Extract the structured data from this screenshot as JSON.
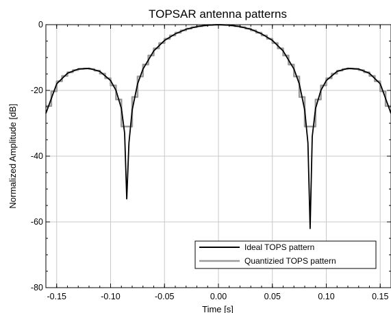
{
  "chart_data": {
    "type": "line",
    "title": "TOPSAR antenna patterns",
    "xlabel": "Time [s]",
    "ylabel": "Normalized Amplitude [dB]",
    "xlim": [
      -0.16,
      0.16
    ],
    "ylim": [
      -80,
      0
    ],
    "xticks": [
      -0.15,
      -0.1,
      -0.05,
      0.0,
      0.05,
      0.1,
      0.15
    ],
    "xtick_labels": [
      "-0.15",
      "-0.10",
      "-0.05",
      "0.00",
      "0.05",
      "0.10",
      "0.15"
    ],
    "yticks": [
      -80,
      -60,
      -40,
      -20,
      0
    ],
    "ytick_labels": [
      "-80",
      "-60",
      "-40",
      "-20",
      "0"
    ],
    "grid": true,
    "legend_position": "bottom-right",
    "series": [
      {
        "name": "Ideal TOPS pattern",
        "color": "#000000",
        "x": [
          -0.16,
          -0.15,
          -0.14,
          -0.13,
          -0.12,
          -0.11,
          -0.1,
          -0.095,
          -0.09,
          -0.087,
          -0.085,
          -0.083,
          -0.08,
          -0.075,
          -0.07,
          -0.06,
          -0.05,
          -0.04,
          -0.03,
          -0.02,
          -0.01,
          0.0,
          0.01,
          0.02,
          0.03,
          0.04,
          0.05,
          0.06,
          0.07,
          0.075,
          0.08,
          0.083,
          0.085,
          0.087,
          0.09,
          0.095,
          0.1,
          0.11,
          0.12,
          0.13,
          0.14,
          0.15,
          0.16
        ],
        "y": [
          -27,
          -18,
          -14.8,
          -13.5,
          -13.3,
          -14.2,
          -17,
          -20,
          -25.5,
          -33,
          -53,
          -36,
          -26,
          -18,
          -13.5,
          -8,
          -4.8,
          -2.8,
          -1.4,
          -0.6,
          -0.15,
          0,
          -0.15,
          -0.6,
          -1.4,
          -2.8,
          -4.8,
          -8,
          -13.5,
          -18,
          -26,
          -36,
          -62,
          -34,
          -25.5,
          -20,
          -17,
          -14.2,
          -13.3,
          -13.5,
          -14.8,
          -18,
          -27
        ]
      },
      {
        "name": "Quantizied TOPS pattern",
        "color": "#9a9a9a",
        "step": 0.005
      }
    ]
  }
}
